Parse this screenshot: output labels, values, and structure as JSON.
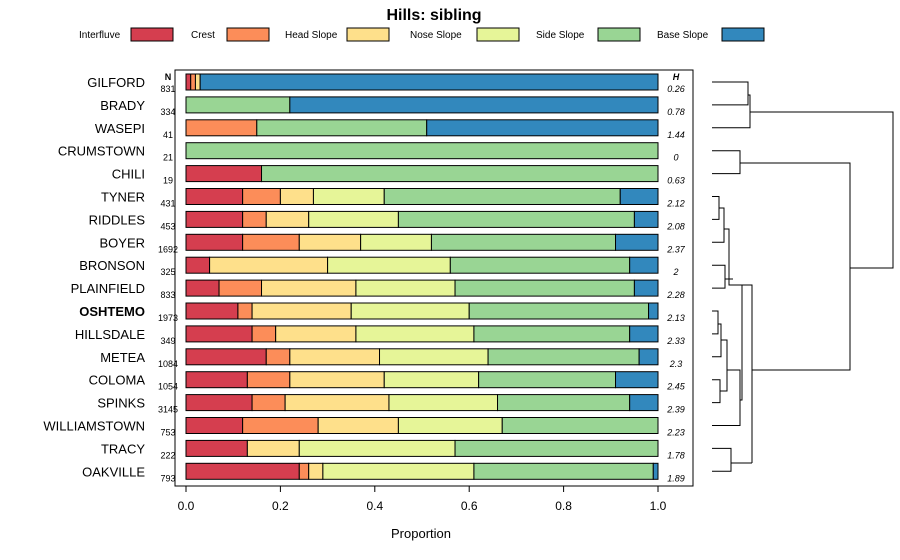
{
  "chart_data": {
    "type": "bar",
    "orientation": "horizontal",
    "stacked": true,
    "title": "Hills: sibling",
    "xlabel": "Proportion",
    "ylabel": "",
    "xlim": [
      0,
      1
    ],
    "xticks": [
      "0.0",
      "0.2",
      "0.4",
      "0.6",
      "0.8",
      "1.0"
    ],
    "n_header": "N",
    "h_header": "H",
    "highlight": "OSHTEMO",
    "legend": [
      {
        "name": "Interfluve",
        "color": "#d53e4f"
      },
      {
        "name": "Crest",
        "color": "#fc8d59"
      },
      {
        "name": "Head Slope",
        "color": "#fee08b"
      },
      {
        "name": "Nose Slope",
        "color": "#e6f598"
      },
      {
        "name": "Side Slope",
        "color": "#99d594"
      },
      {
        "name": "Base Slope",
        "color": "#3288bd"
      }
    ],
    "series_names": [
      "Interfluve",
      "Crest",
      "Head Slope",
      "Nose Slope",
      "Side Slope",
      "Base Slope"
    ],
    "rows": [
      {
        "label": "GILFORD",
        "n": "831",
        "h": "0.26",
        "values": [
          0.01,
          0.01,
          0.01,
          0.0,
          0.0,
          0.97
        ]
      },
      {
        "label": "BRADY",
        "n": "334",
        "h": "0.78",
        "values": [
          0.0,
          0.0,
          0.0,
          0.0,
          0.22,
          0.78
        ]
      },
      {
        "label": "WASEPI",
        "n": "41",
        "h": "1.44",
        "values": [
          0.0,
          0.15,
          0.0,
          0.0,
          0.36,
          0.49
        ]
      },
      {
        "label": "CRUMSTOWN",
        "n": "21",
        "h": "0",
        "values": [
          0.0,
          0.0,
          0.0,
          0.0,
          1.0,
          0.0
        ]
      },
      {
        "label": "CHILI",
        "n": "19",
        "h": "0.63",
        "values": [
          0.16,
          0.0,
          0.0,
          0.0,
          0.84,
          0.0
        ]
      },
      {
        "label": "TYNER",
        "n": "431",
        "h": "2.12",
        "values": [
          0.12,
          0.08,
          0.07,
          0.15,
          0.5,
          0.08
        ]
      },
      {
        "label": "RIDDLES",
        "n": "453",
        "h": "2.08",
        "values": [
          0.12,
          0.05,
          0.09,
          0.19,
          0.5,
          0.05
        ]
      },
      {
        "label": "BOYER",
        "n": "1692",
        "h": "2.37",
        "values": [
          0.12,
          0.12,
          0.13,
          0.15,
          0.39,
          0.09
        ]
      },
      {
        "label": "BRONSON",
        "n": "325",
        "h": "2",
        "values": [
          0.05,
          0.0,
          0.25,
          0.26,
          0.38,
          0.06
        ]
      },
      {
        "label": "PLAINFIELD",
        "n": "833",
        "h": "2.28",
        "values": [
          0.07,
          0.09,
          0.2,
          0.21,
          0.38,
          0.05
        ]
      },
      {
        "label": "OSHTEMO",
        "n": "1973",
        "h": "2.13",
        "values": [
          0.11,
          0.03,
          0.21,
          0.25,
          0.38,
          0.02
        ]
      },
      {
        "label": "HILLSDALE",
        "n": "349",
        "h": "2.33",
        "values": [
          0.14,
          0.05,
          0.17,
          0.25,
          0.33,
          0.06
        ]
      },
      {
        "label": "METEA",
        "n": "1084",
        "h": "2.3",
        "values": [
          0.17,
          0.05,
          0.19,
          0.23,
          0.32,
          0.04
        ]
      },
      {
        "label": "COLOMA",
        "n": "1054",
        "h": "2.45",
        "values": [
          0.13,
          0.09,
          0.2,
          0.2,
          0.29,
          0.09
        ]
      },
      {
        "label": "SPINKS",
        "n": "3145",
        "h": "2.39",
        "values": [
          0.14,
          0.07,
          0.22,
          0.23,
          0.28,
          0.06
        ]
      },
      {
        "label": "WILLIAMSTOWN",
        "n": "753",
        "h": "2.23",
        "values": [
          0.12,
          0.16,
          0.17,
          0.22,
          0.33,
          0.0
        ]
      },
      {
        "label": "TRACY",
        "n": "222",
        "h": "1.78",
        "values": [
          0.13,
          0.0,
          0.11,
          0.33,
          0.43,
          0.0
        ]
      },
      {
        "label": "OAKVILLE",
        "n": "793",
        "h": "1.89",
        "values": [
          0.24,
          0.02,
          0.03,
          0.32,
          0.38,
          0.01
        ]
      }
    ]
  }
}
